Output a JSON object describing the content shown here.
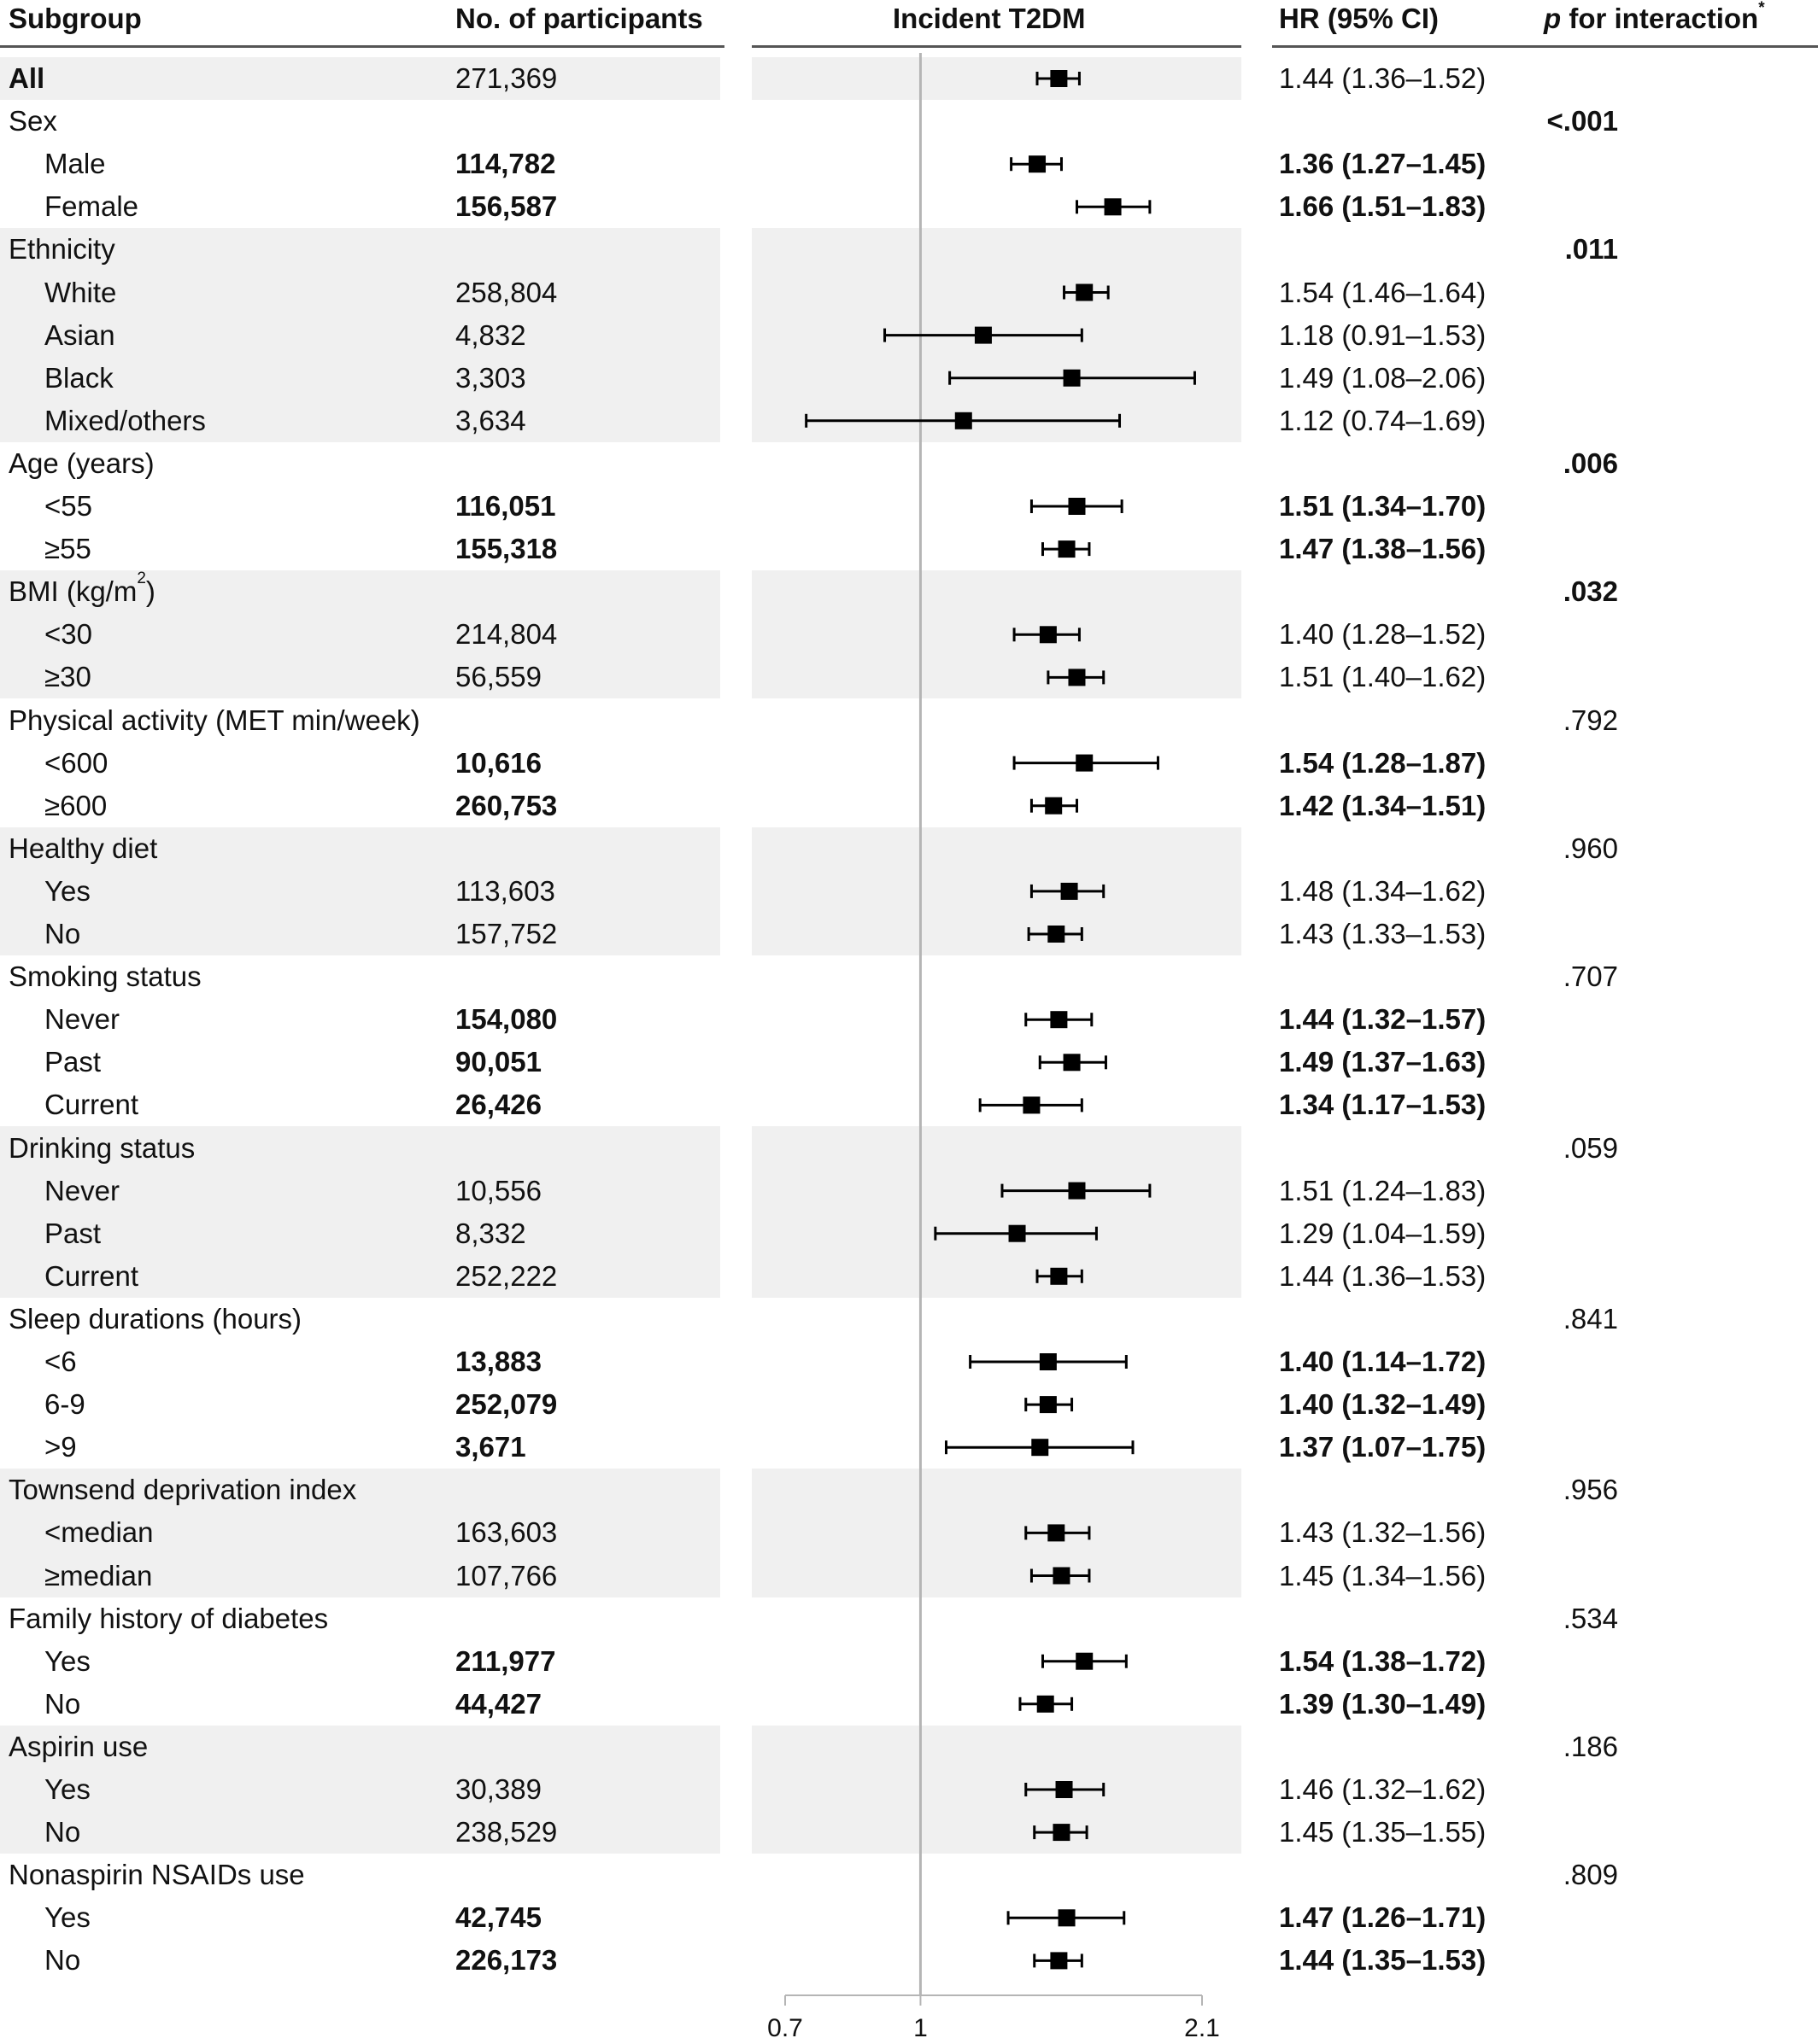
{
  "headers": {
    "subgroup": "Subgroup",
    "participants": "No. of participants",
    "plot": "Incident T2DM",
    "hr": "HR (95% CI)",
    "p_italic": "p",
    "p_rest": " for interaction",
    "p_mark": "*"
  },
  "rows": [
    {
      "kind": "total",
      "label": "All",
      "n": "271,369",
      "hr": "1.44 (1.36–1.52)",
      "hr_val": 1.44,
      "lo": 1.36,
      "hi": 1.52,
      "p": "",
      "bold": false,
      "shade": true
    },
    {
      "kind": "group",
      "label": "Sex",
      "n": "",
      "hr": "",
      "p": "<.001",
      "bold": true,
      "shade": false
    },
    {
      "kind": "item",
      "label": "Male",
      "n": "114,782",
      "hr": "1.36 (1.27–1.45)",
      "hr_val": 1.36,
      "lo": 1.27,
      "hi": 1.45,
      "p": "",
      "bold": true,
      "shade": false
    },
    {
      "kind": "item",
      "label": "Female",
      "n": "156,587",
      "hr": "1.66 (1.51–1.83)",
      "hr_val": 1.66,
      "lo": 1.51,
      "hi": 1.83,
      "p": "",
      "bold": true,
      "shade": false
    },
    {
      "kind": "group",
      "label": "Ethnicity",
      "n": "",
      "hr": "",
      "p": ".011",
      "bold": true,
      "shade": true
    },
    {
      "kind": "item",
      "label": "White",
      "n": "258,804",
      "hr": "1.54 (1.46–1.64)",
      "hr_val": 1.54,
      "lo": 1.46,
      "hi": 1.64,
      "p": "",
      "bold": false,
      "shade": true
    },
    {
      "kind": "item",
      "label": "Asian",
      "n": "4,832",
      "hr": "1.18 (0.91–1.53)",
      "hr_val": 1.18,
      "lo": 0.91,
      "hi": 1.53,
      "p": "",
      "bold": false,
      "shade": true
    },
    {
      "kind": "item",
      "label": "Black",
      "n": "3,303",
      "hr": "1.49 (1.08–2.06)",
      "hr_val": 1.49,
      "lo": 1.08,
      "hi": 2.06,
      "p": "",
      "bold": false,
      "shade": true
    },
    {
      "kind": "item",
      "label": "Mixed/others",
      "n": "3,634",
      "hr": "1.12 (0.74–1.69)",
      "hr_val": 1.12,
      "lo": 0.74,
      "hi": 1.69,
      "p": "",
      "bold": false,
      "shade": true
    },
    {
      "kind": "group",
      "label": "Age (years)",
      "n": "",
      "hr": "",
      "p": ".006",
      "bold": true,
      "shade": false
    },
    {
      "kind": "item",
      "label": "<55",
      "n": "116,051",
      "hr": "1.51 (1.34–1.70)",
      "hr_val": 1.51,
      "lo": 1.34,
      "hi": 1.7,
      "p": "",
      "bold": true,
      "shade": false
    },
    {
      "kind": "item",
      "label": "≥55",
      "n": "155,318",
      "hr": "1.47 (1.38–1.56)",
      "hr_val": 1.47,
      "lo": 1.38,
      "hi": 1.56,
      "p": "",
      "bold": true,
      "shade": false
    },
    {
      "kind": "group",
      "label": "BMI (kg/m",
      "label_sup": "2",
      "label_after": ")",
      "n": "",
      "hr": "",
      "p": ".032",
      "bold": true,
      "shade": true
    },
    {
      "kind": "item",
      "label": "<30",
      "n": "214,804",
      "hr": "1.40 (1.28–1.52)",
      "hr_val": 1.4,
      "lo": 1.28,
      "hi": 1.52,
      "p": "",
      "bold": false,
      "shade": true
    },
    {
      "kind": "item",
      "label": "≥30",
      "n": "56,559",
      "hr": "1.51 (1.40–1.62)",
      "hr_val": 1.51,
      "lo": 1.4,
      "hi": 1.62,
      "p": "",
      "bold": false,
      "shade": true
    },
    {
      "kind": "group",
      "label": "Physical activity (MET min/week)",
      "n": "",
      "hr": "",
      "p": ".792",
      "bold": false,
      "shade": false
    },
    {
      "kind": "item",
      "label": "<600",
      "n": "10,616",
      "hr": "1.54 (1.28–1.87)",
      "hr_val": 1.54,
      "lo": 1.28,
      "hi": 1.87,
      "p": "",
      "bold": true,
      "shade": false
    },
    {
      "kind": "item",
      "label": "≥600",
      "n": "260,753",
      "hr": "1.42 (1.34–1.51)",
      "hr_val": 1.42,
      "lo": 1.34,
      "hi": 1.51,
      "p": "",
      "bold": true,
      "shade": false
    },
    {
      "kind": "group",
      "label": "Healthy diet",
      "n": "",
      "hr": "",
      "p": ".960",
      "bold": false,
      "shade": true
    },
    {
      "kind": "item",
      "label": "Yes",
      "n": "113,603",
      "hr": "1.48 (1.34–1.62)",
      "hr_val": 1.48,
      "lo": 1.34,
      "hi": 1.62,
      "p": "",
      "bold": false,
      "shade": true
    },
    {
      "kind": "item",
      "label": "No",
      "n": "157,752",
      "hr": "1.43 (1.33–1.53)",
      "hr_val": 1.43,
      "lo": 1.33,
      "hi": 1.53,
      "p": "",
      "bold": false,
      "shade": true
    },
    {
      "kind": "group",
      "label": "Smoking status",
      "n": "",
      "hr": "",
      "p": ".707",
      "bold": false,
      "shade": false
    },
    {
      "kind": "item",
      "label": "Never",
      "n": "154,080",
      "hr": "1.44 (1.32–1.57)",
      "hr_val": 1.44,
      "lo": 1.32,
      "hi": 1.57,
      "p": "",
      "bold": true,
      "shade": false
    },
    {
      "kind": "item",
      "label": "Past",
      "n": "90,051",
      "hr": "1.49 (1.37–1.63)",
      "hr_val": 1.49,
      "lo": 1.37,
      "hi": 1.63,
      "p": "",
      "bold": true,
      "shade": false
    },
    {
      "kind": "item",
      "label": "Current",
      "n": "26,426",
      "hr": "1.34 (1.17–1.53)",
      "hr_val": 1.34,
      "lo": 1.17,
      "hi": 1.53,
      "p": "",
      "bold": true,
      "shade": false
    },
    {
      "kind": "group",
      "label": "Drinking status",
      "n": "",
      "hr": "",
      "p": ".059",
      "bold": false,
      "shade": true
    },
    {
      "kind": "item",
      "label": "Never",
      "n": "10,556",
      "hr": "1.51 (1.24–1.83)",
      "hr_val": 1.51,
      "lo": 1.24,
      "hi": 1.83,
      "p": "",
      "bold": false,
      "shade": true
    },
    {
      "kind": "item",
      "label": "Past",
      "n": "8,332",
      "hr": "1.29 (1.04–1.59)",
      "hr_val": 1.29,
      "lo": 1.04,
      "hi": 1.59,
      "p": "",
      "bold": false,
      "shade": true
    },
    {
      "kind": "item",
      "label": "Current",
      "n": "252,222",
      "hr": "1.44 (1.36–1.53)",
      "hr_val": 1.44,
      "lo": 1.36,
      "hi": 1.53,
      "p": "",
      "bold": false,
      "shade": true
    },
    {
      "kind": "group",
      "label": "Sleep durations (hours)",
      "n": "",
      "hr": "",
      "p": ".841",
      "bold": false,
      "shade": false
    },
    {
      "kind": "item",
      "label": "<6",
      "n": "13,883",
      "hr": "1.40 (1.14–1.72)",
      "hr_val": 1.4,
      "lo": 1.14,
      "hi": 1.72,
      "p": "",
      "bold": true,
      "shade": false
    },
    {
      "kind": "item",
      "label": "6-9",
      "n": "252,079",
      "hr": "1.40 (1.32–1.49)",
      "hr_val": 1.4,
      "lo": 1.32,
      "hi": 1.49,
      "p": "",
      "bold": true,
      "shade": false
    },
    {
      "kind": "item",
      "label": ">9",
      "n": "3,671",
      "hr": "1.37 (1.07–1.75)",
      "hr_val": 1.37,
      "lo": 1.07,
      "hi": 1.75,
      "p": "",
      "bold": true,
      "shade": false
    },
    {
      "kind": "group",
      "label": "Townsend deprivation index",
      "n": "",
      "hr": "",
      "p": ".956",
      "bold": false,
      "shade": true
    },
    {
      "kind": "item",
      "label": "<median",
      "n": "163,603",
      "hr": "1.43 (1.32–1.56)",
      "hr_val": 1.43,
      "lo": 1.32,
      "hi": 1.56,
      "p": "",
      "bold": false,
      "shade": true
    },
    {
      "kind": "item",
      "label": "≥median",
      "n": "107,766",
      "hr": "1.45 (1.34–1.56)",
      "hr_val": 1.45,
      "lo": 1.34,
      "hi": 1.56,
      "p": "",
      "bold": false,
      "shade": true
    },
    {
      "kind": "group",
      "label": "Family history of diabetes",
      "n": "",
      "hr": "",
      "p": ".534",
      "bold": false,
      "shade": false
    },
    {
      "kind": "item",
      "label": "Yes",
      "n": "211,977",
      "hr": "1.54 (1.38–1.72)",
      "hr_val": 1.54,
      "lo": 1.38,
      "hi": 1.72,
      "p": "",
      "bold": true,
      "shade": false
    },
    {
      "kind": "item",
      "label": "No",
      "n": "44,427",
      "hr": "1.39 (1.30–1.49)",
      "hr_val": 1.39,
      "lo": 1.3,
      "hi": 1.49,
      "p": "",
      "bold": true,
      "shade": false
    },
    {
      "kind": "group",
      "label": "Aspirin use",
      "n": "",
      "hr": "",
      "p": ".186",
      "bold": false,
      "shade": true
    },
    {
      "kind": "item",
      "label": "Yes",
      "n": "30,389",
      "hr": "1.46 (1.32–1.62)",
      "hr_val": 1.46,
      "lo": 1.32,
      "hi": 1.62,
      "p": "",
      "bold": false,
      "shade": true
    },
    {
      "kind": "item",
      "label": "No",
      "n": "238,529",
      "hr": "1.45 (1.35–1.55)",
      "hr_val": 1.45,
      "lo": 1.35,
      "hi": 1.55,
      "p": "",
      "bold": false,
      "shade": true
    },
    {
      "kind": "group",
      "label": "Nonaspirin NSAIDs use",
      "n": "",
      "hr": "",
      "p": ".809",
      "bold": false,
      "shade": false
    },
    {
      "kind": "item",
      "label": "Yes",
      "n": "42,745",
      "hr": "1.47 (1.26–1.71)",
      "hr_val": 1.47,
      "lo": 1.26,
      "hi": 1.71,
      "p": "",
      "bold": true,
      "shade": false
    },
    {
      "kind": "item",
      "label": "No",
      "n": "226,173",
      "hr": "1.44 (1.35–1.53)",
      "hr_val": 1.44,
      "lo": 1.35,
      "hi": 1.53,
      "p": "",
      "bold": true,
      "shade": false
    }
  ],
  "chart_data": {
    "type": "forest",
    "title": "Incident T2DM",
    "xlabel": "",
    "x_scale": "log",
    "xlim": [
      0.7,
      2.1
    ],
    "x_ticks": [
      0.7,
      1,
      2.1
    ],
    "x_tick_labels": [
      "0.7",
      "1",
      "2.1"
    ],
    "reference_line": 1,
    "reference_line_color": "#b5b5b5",
    "marker_color": "#000000",
    "shade_color": "#f0f0f0",
    "categories": [
      "All",
      "Male",
      "Female",
      "White",
      "Asian",
      "Black",
      "Mixed/others",
      "<55",
      "≥55",
      "<30",
      "≥30",
      "<600",
      "≥600",
      "Healthy diet: Yes",
      "Healthy diet: No",
      "Smoking: Never",
      "Smoking: Past",
      "Smoking: Current",
      "Drinking: Never",
      "Drinking: Past",
      "Drinking: Current",
      "<6",
      "6-9",
      ">9",
      "<median",
      "≥median",
      "Family history: Yes",
      "Family history: No",
      "Aspirin: Yes",
      "Aspirin: No",
      "NSAIDs: Yes",
      "NSAIDs: No"
    ],
    "series": [
      {
        "hr": [
          1.44,
          1.36,
          1.66,
          1.54,
          1.18,
          1.49,
          1.12,
          1.51,
          1.47,
          1.4,
          1.51,
          1.54,
          1.42,
          1.48,
          1.43,
          1.44,
          1.49,
          1.34,
          1.51,
          1.29,
          1.44,
          1.4,
          1.4,
          1.37,
          1.43,
          1.45,
          1.54,
          1.39,
          1.46,
          1.45,
          1.47,
          1.44
        ],
        "lower": [
          1.36,
          1.27,
          1.51,
          1.46,
          0.91,
          1.08,
          0.74,
          1.34,
          1.38,
          1.28,
          1.4,
          1.28,
          1.34,
          1.34,
          1.33,
          1.32,
          1.37,
          1.17,
          1.24,
          1.04,
          1.36,
          1.14,
          1.32,
          1.07,
          1.32,
          1.34,
          1.38,
          1.3,
          1.32,
          1.35,
          1.26,
          1.35
        ],
        "upper": [
          1.52,
          1.45,
          1.83,
          1.64,
          1.53,
          2.06,
          1.69,
          1.7,
          1.56,
          1.52,
          1.62,
          1.87,
          1.51,
          1.62,
          1.53,
          1.57,
          1.63,
          1.53,
          1.83,
          1.59,
          1.53,
          1.72,
          1.49,
          1.75,
          1.56,
          1.56,
          1.72,
          1.49,
          1.62,
          1.55,
          1.71,
          1.53
        ]
      }
    ]
  }
}
